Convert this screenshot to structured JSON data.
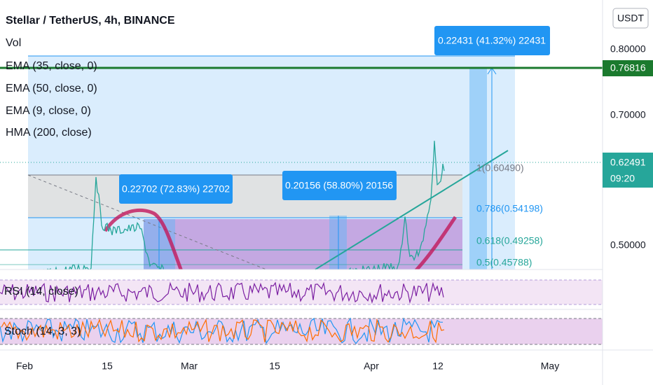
{
  "header": {
    "title": "Stellar / TetherUS, 4h, BINANCE",
    "indicators": [
      "Vol",
      "EMA (35, close, 0)",
      "EMA (50, close, 0)",
      "EMA (9, close, 0)",
      "HMA (200, close)"
    ]
  },
  "price_axis": {
    "currency": "USDT",
    "labels": [
      "0.80000",
      "0.70000",
      "0.50000"
    ],
    "alert_price": "0.76816",
    "last_price": "0.62491",
    "countdown": "09:20"
  },
  "fib_levels": [
    "1(0.60490)",
    "0.786(0.54198)",
    "0.618(0.49258)",
    "0.5(0.45788)"
  ],
  "measurements": [
    "0.22431 (41.32%) 22431",
    "0.22702 (72.83%) 22702",
    "0.20156 (58.80%) 20156"
  ],
  "panes": [
    "RSI (14, close)",
    "Stoch (14, 3, 3)"
  ],
  "time_axis": [
    "Feb",
    "15",
    "Mar",
    "15",
    "Apr",
    "12",
    "May"
  ]
}
